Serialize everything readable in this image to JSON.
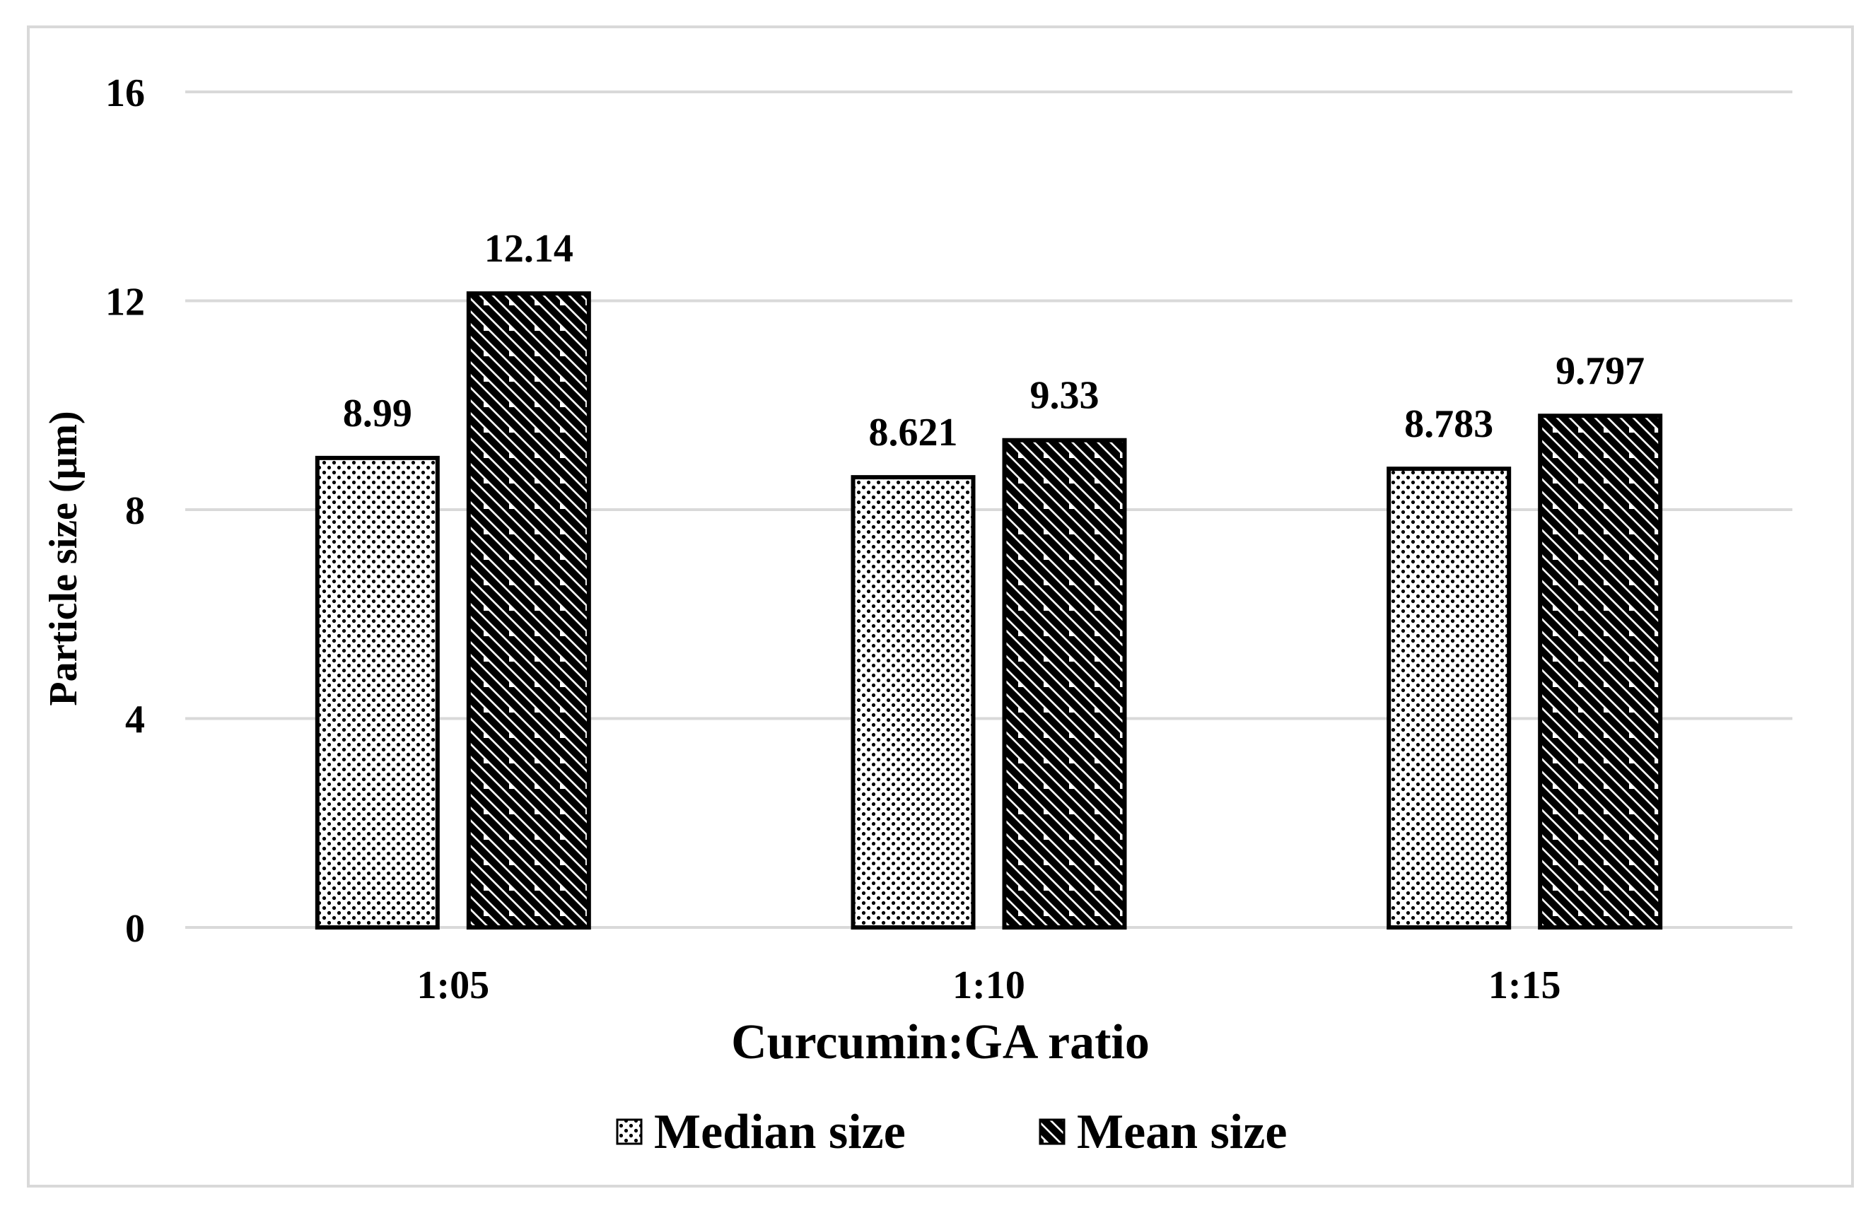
{
  "chart_data": {
    "type": "bar",
    "title": "",
    "xlabel": "Curcumin:GA ratio",
    "ylabel": "Particle size (μm)",
    "categories": [
      "1:05",
      "1:10",
      "1:15"
    ],
    "ylim": [
      0,
      16
    ],
    "yticks": [
      0,
      4,
      8,
      12,
      16
    ],
    "grid": true,
    "legend_position": "bottom",
    "series": [
      {
        "name": "Median size",
        "pattern": "dots",
        "values": [
          8.99,
          8.621,
          8.783
        ],
        "labels": [
          "8.99",
          "8.621",
          "8.783"
        ]
      },
      {
        "name": "Mean size",
        "pattern": "diagonal-stripes",
        "values": [
          12.14,
          9.33,
          9.797
        ],
        "labels": [
          "12.14",
          "9.33",
          "9.797"
        ]
      }
    ]
  },
  "colors": {
    "gridline": "#d9d9d9",
    "bar_stroke": "#000000",
    "frame": "#d9d9d9",
    "background": "#ffffff"
  }
}
